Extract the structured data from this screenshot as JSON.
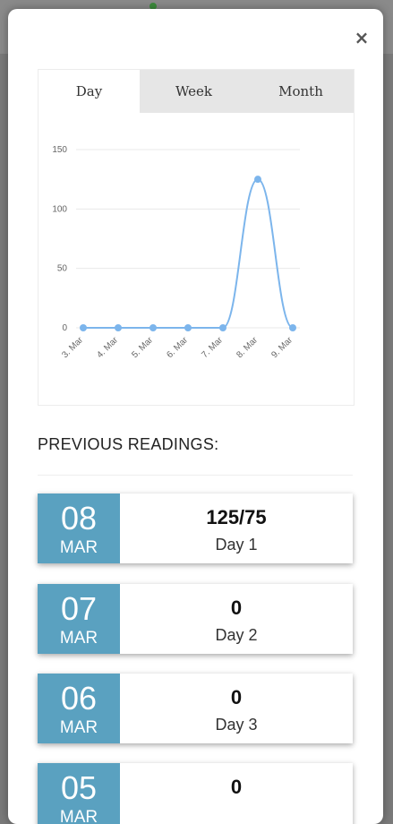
{
  "modal": {
    "close_symbol": "×"
  },
  "tabs": [
    {
      "label": "Day",
      "active": true
    },
    {
      "label": "Week",
      "active": false
    },
    {
      "label": "Month",
      "active": false
    }
  ],
  "chart_data": {
    "type": "line",
    "categories": [
      "3. Mar",
      "4. Mar",
      "5. Mar",
      "6. Mar",
      "7. Mar",
      "8. Mar",
      "9. Mar"
    ],
    "values": [
      0,
      0,
      0,
      0,
      0,
      125,
      0
    ],
    "yticks": [
      0,
      50,
      100,
      150
    ],
    "ylim": [
      0,
      150
    ],
    "title": "",
    "xlabel": "",
    "ylabel": "",
    "grid": true,
    "smooth": true,
    "line_color": "#7cb5ec"
  },
  "previous_title": "PREVIOUS READINGS:",
  "readings": [
    {
      "day": "08",
      "month": "MAR",
      "value": "125/75",
      "label": "Day 1"
    },
    {
      "day": "07",
      "month": "MAR",
      "value": "0",
      "label": "Day 2"
    },
    {
      "day": "06",
      "month": "MAR",
      "value": "0",
      "label": "Day 3"
    },
    {
      "day": "05",
      "month": "MAR",
      "value": "0",
      "label": ""
    }
  ],
  "colors": {
    "accent": "#5aa1c0"
  }
}
